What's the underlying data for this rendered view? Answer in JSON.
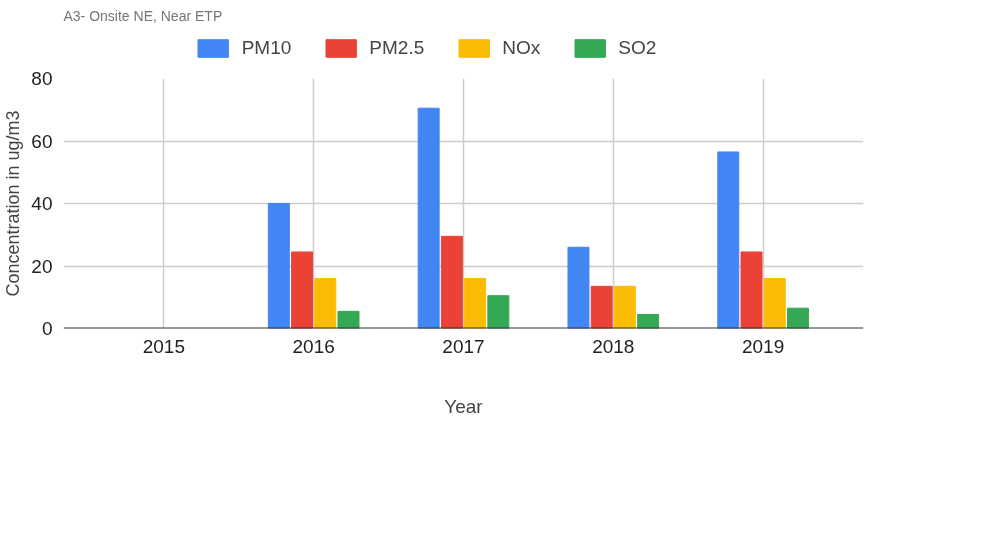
{
  "chart_data": {
    "type": "bar",
    "title": "A3- Onsite NE, Near ETP",
    "xlabel": "Year",
    "ylabel": "Concentration in ug/m3",
    "categories": [
      "2015",
      "2016",
      "2017",
      "2018",
      "2019"
    ],
    "series": [
      {
        "name": "PM10",
        "color": "#4285f4",
        "values": [
          null,
          40,
          70.5,
          26,
          56.5
        ]
      },
      {
        "name": "PM2.5",
        "color": "#ea4335",
        "values": [
          null,
          24.5,
          29.5,
          13.5,
          24.5
        ]
      },
      {
        "name": "NOx",
        "color": "#fbbc04",
        "values": [
          null,
          16,
          16,
          13.5,
          16
        ]
      },
      {
        "name": "SO2",
        "color": "#34a853",
        "values": [
          null,
          5.5,
          10.5,
          4.5,
          6.5
        ]
      }
    ],
    "ylim": [
      0,
      80
    ],
    "yticks": [
      0,
      20,
      40,
      60,
      80
    ],
    "grid": true,
    "legend": "top"
  }
}
